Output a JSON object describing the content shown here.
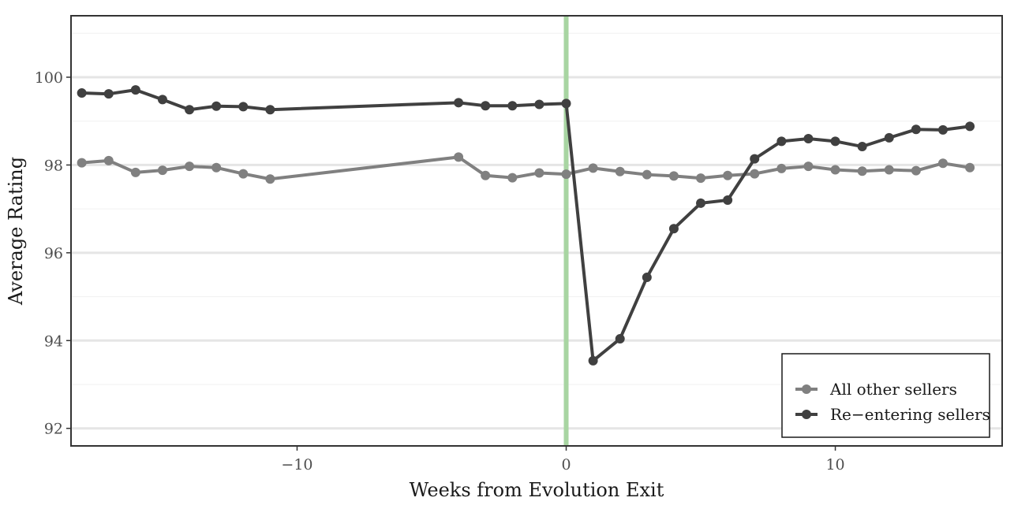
{
  "chart_data": {
    "type": "line",
    "xlabel": "Weeks from Evolution Exit",
    "ylabel": "Average Rating",
    "xlim": [
      -18.4,
      16.2
    ],
    "ylim": [
      91.6,
      101.4
    ],
    "x_ticks": [
      -10,
      0,
      10
    ],
    "x_tick_labels": [
      "−10",
      "0",
      "10"
    ],
    "y_ticks": [
      92,
      94,
      96,
      98,
      100
    ],
    "y_tick_labels": [
      "92",
      "94",
      "96",
      "98",
      "100"
    ],
    "grid": true,
    "vline": {
      "x": 0,
      "color": "#a8d5a2"
    },
    "legend_position": "bottom-right",
    "series": [
      {
        "name": "All other sellers",
        "color": "#808080",
        "x": [
          -18,
          -17,
          -16,
          -15,
          -14,
          -13,
          -12,
          -11,
          -4,
          -3,
          -2,
          -1,
          0,
          1,
          2,
          3,
          4,
          5,
          6,
          7,
          8,
          9,
          10,
          11,
          12,
          13,
          14,
          15
        ],
        "y": [
          98.05,
          98.1,
          97.83,
          97.88,
          97.97,
          97.94,
          97.8,
          97.68,
          98.18,
          97.76,
          97.71,
          97.82,
          97.79,
          97.93,
          97.85,
          97.78,
          97.75,
          97.7,
          97.76,
          97.8,
          97.92,
          97.97,
          97.89,
          97.86,
          97.89,
          97.87,
          98.04,
          97.94
        ]
      },
      {
        "name": "Re−entering sellers",
        "color": "#404040",
        "x": [
          -18,
          -17,
          -16,
          -15,
          -14,
          -13,
          -12,
          -11,
          -4,
          -3,
          -2,
          -1,
          0,
          1,
          2,
          3,
          4,
          5,
          6,
          7,
          8,
          9,
          10,
          11,
          12,
          13,
          14,
          15
        ],
        "y": [
          99.64,
          99.62,
          99.71,
          99.49,
          99.26,
          99.34,
          99.33,
          99.26,
          99.42,
          99.35,
          99.35,
          99.38,
          99.4,
          93.54,
          94.04,
          95.44,
          96.55,
          97.13,
          97.2,
          98.14,
          98.54,
          98.6,
          98.54,
          98.42,
          98.62,
          98.81,
          98.8,
          98.88
        ]
      }
    ]
  }
}
